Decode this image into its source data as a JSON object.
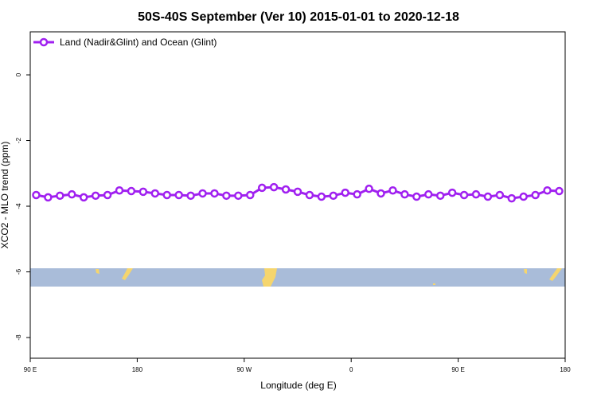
{
  "chart_data": {
    "type": "line",
    "title": "50S-40S September (Ver 10)   2015-01-01 to 2020-12-18",
    "x_label": "Longitude (deg E)",
    "y_label": "XCO2 - MLO trend (ppm)",
    "x": [
      95,
      105,
      115,
      125,
      135,
      145,
      155,
      165,
      175,
      185,
      195,
      205,
      215,
      225,
      235,
      245,
      255,
      265,
      275,
      285,
      295,
      305,
      315,
      325,
      335,
      345,
      355,
      365,
      375,
      385,
      395,
      405,
      415,
      425,
      435,
      445,
      455,
      465,
      475,
      485,
      495,
      505,
      515,
      525,
      535
    ],
    "series": [
      {
        "name": "Land (Nadir&Glint) and Ocean (Glint)",
        "color": "#a020f0",
        "values": [
          -3.66,
          -3.73,
          -3.68,
          -3.64,
          -3.73,
          -3.68,
          -3.66,
          -3.52,
          -3.54,
          -3.56,
          -3.61,
          -3.66,
          -3.66,
          -3.68,
          -3.61,
          -3.61,
          -3.68,
          -3.68,
          -3.66,
          -3.44,
          -3.42,
          -3.49,
          -3.56,
          -3.66,
          -3.71,
          -3.68,
          -3.59,
          -3.64,
          -3.47,
          -3.61,
          -3.52,
          -3.64,
          -3.71,
          -3.64,
          -3.68,
          -3.59,
          -3.66,
          -3.64,
          -3.71,
          -3.66,
          -3.76,
          -3.71,
          -3.66,
          -3.52,
          -3.54
        ]
      }
    ],
    "xlim": [
      90,
      540
    ],
    "xticks": [
      {
        "value": 90,
        "label": "90 E"
      },
      {
        "value": 180,
        "label": "180"
      },
      {
        "value": 270,
        "label": "90 W"
      },
      {
        "value": 360,
        "label": "0"
      },
      {
        "value": 450,
        "label": "90 E"
      },
      {
        "value": 540,
        "label": "180"
      }
    ],
    "ylim": [
      -8.63,
      1.31
    ],
    "yticks": [
      0,
      -2,
      -4,
      -6,
      -8
    ],
    "legend": "top-left"
  }
}
